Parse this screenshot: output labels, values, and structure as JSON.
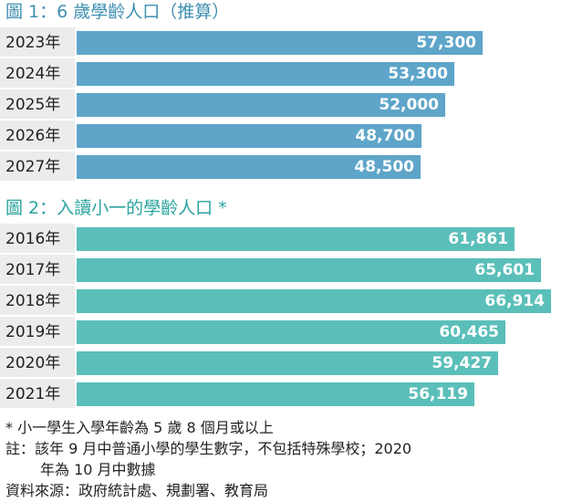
{
  "chart_data": [
    {
      "type": "bar",
      "orientation": "horizontal",
      "title": "圖 1：6 歲學齡人口（推算）",
      "categories": [
        "2023年",
        "2024年",
        "2025年",
        "2026年",
        "2027年"
      ],
      "values": [
        57300,
        53300,
        52000,
        48700,
        48500
      ],
      "value_labels": [
        "57,300",
        "53,300",
        "52,000",
        "48,700",
        "48,500"
      ],
      "bar_color": "#5ea5c9"
    },
    {
      "type": "bar",
      "orientation": "horizontal",
      "title": "圖 2：入讀小一的學齡人口 *",
      "categories": [
        "2016年",
        "2017年",
        "2018年",
        "2019年",
        "2020年",
        "2021年"
      ],
      "values": [
        61861,
        65601,
        66914,
        60465,
        59427,
        56119
      ],
      "value_labels": [
        "61,861",
        "65,601",
        "66,914",
        "60,465",
        "59,427",
        "56,119"
      ],
      "bar_color": "#5bbfb9"
    }
  ],
  "notes": [
    "* 小一學生入學年齡為 5 歲 8 個月或以上",
    "註：該年 9 月中普通小學的學生數字，不包括特殊學校；2020",
    "年為 10 月中數據",
    "資料來源：政府統計處、規劃署、教育局"
  ]
}
